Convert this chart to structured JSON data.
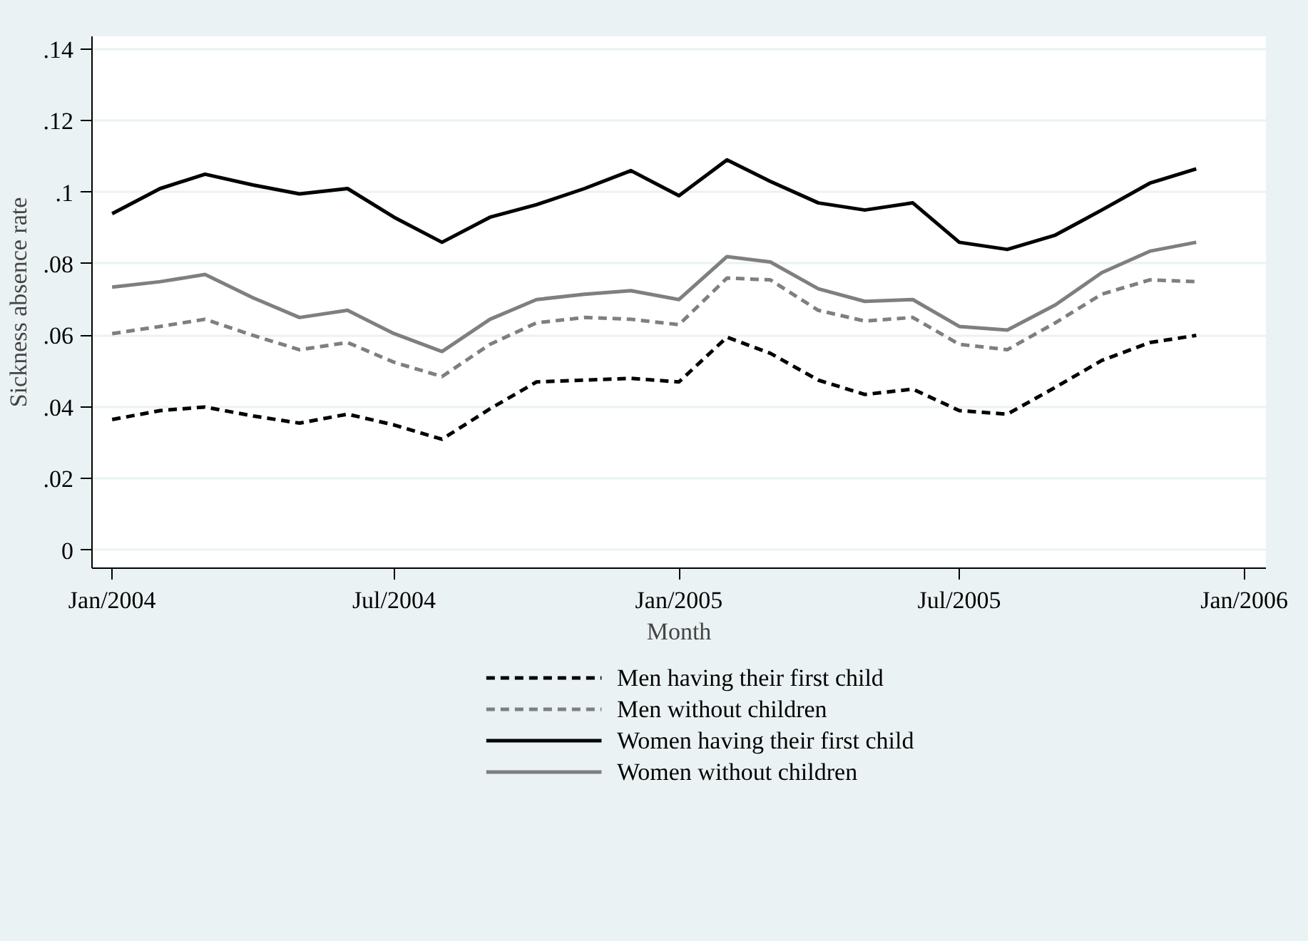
{
  "chart_data": {
    "type": "line",
    "xlabel": "Month",
    "ylabel": "Sickness absence rate",
    "x": [
      "2004-01",
      "2004-02",
      "2004-03",
      "2004-04",
      "2004-05",
      "2004-06",
      "2004-07",
      "2004-08",
      "2004-09",
      "2004-10",
      "2004-11",
      "2004-12",
      "2005-01",
      "2005-02",
      "2005-03",
      "2005-04",
      "2005-05",
      "2005-06",
      "2005-07",
      "2005-08",
      "2005-09",
      "2005-10",
      "2005-11",
      "2005-12"
    ],
    "series": [
      {
        "name": "Men having their first child",
        "color": "#000000",
        "line_style": "dashed",
        "values": [
          0.0365,
          0.039,
          0.04,
          0.0375,
          0.0355,
          0.038,
          0.035,
          0.031,
          0.0395,
          0.047,
          0.0475,
          0.048,
          0.047,
          0.0595,
          0.055,
          0.0475,
          0.0435,
          0.045,
          0.039,
          0.038,
          0.0455,
          0.053,
          0.058,
          0.06
        ]
      },
      {
        "name": "Men without children",
        "color": "#7f7f7f",
        "line_style": "dashed",
        "values": [
          0.0605,
          0.0625,
          0.0645,
          0.06,
          0.056,
          0.058,
          0.0525,
          0.0485,
          0.0575,
          0.0635,
          0.065,
          0.0645,
          0.063,
          0.076,
          0.0755,
          0.067,
          0.064,
          0.065,
          0.0575,
          0.056,
          0.0635,
          0.0715,
          0.0755,
          0.075
        ]
      },
      {
        "name": "Women having their first child",
        "color": "#000000",
        "line_style": "solid",
        "values": [
          0.094,
          0.101,
          0.105,
          0.102,
          0.0995,
          0.101,
          0.093,
          0.086,
          0.093,
          0.0965,
          0.101,
          0.106,
          0.099,
          0.109,
          0.103,
          0.097,
          0.095,
          0.097,
          0.086,
          0.084,
          0.088,
          0.095,
          0.1025,
          0.1065
        ]
      },
      {
        "name": "Women without children",
        "color": "#7f7f7f",
        "line_style": "solid",
        "values": [
          0.0735,
          0.075,
          0.077,
          0.0705,
          0.065,
          0.067,
          0.0605,
          0.0555,
          0.0645,
          0.07,
          0.0715,
          0.0725,
          0.07,
          0.082,
          0.0805,
          0.073,
          0.0695,
          0.07,
          0.0625,
          0.0615,
          0.0685,
          0.0775,
          0.0835,
          0.086
        ]
      }
    ],
    "xlim": [
      "2003-12-19",
      "2006-01-15"
    ],
    "xticks": [
      {
        "value": "2004-01",
        "label": "Jan/2004"
      },
      {
        "value": "2004-07",
        "label": "Jul/2004"
      },
      {
        "value": "2005-01",
        "label": "Jan/2005"
      },
      {
        "value": "2005-07",
        "label": "Jul/2005"
      },
      {
        "value": "2006-01",
        "label": "Jan/2006"
      }
    ],
    "ylim": [
      -0.005,
      0.1435
    ],
    "yticks": [
      0,
      {
        "value": 0.02,
        "label": ".02"
      },
      {
        "value": 0.04,
        "label": ".04"
      },
      {
        "value": 0.06,
        "label": ".06"
      },
      {
        "value": 0.08,
        "label": ".08"
      },
      {
        "value": 0.1,
        "label": ".1"
      },
      {
        "value": 0.12,
        "label": ".12"
      },
      {
        "value": 0.14,
        "label": ".14"
      }
    ],
    "grid": "y",
    "legend": "bottom",
    "marker": "none"
  }
}
